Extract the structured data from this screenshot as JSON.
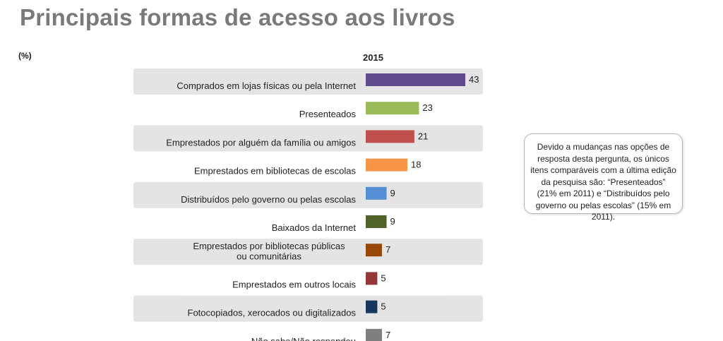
{
  "title": "Principais formas de acesso aos livros",
  "unit_label": "(%)",
  "note": "Devido a mudanças nas opções de resposta desta pergunta, os únicos itens comparáveis com a última edição da pesquisa são: “Presenteados” (21% em 2011) e “Distribuídos pelo governo ou pelas escolas” (15% em 2011).",
  "chart_data": {
    "type": "bar",
    "orientation": "horizontal",
    "series_name": "2015",
    "categories": [
      "Comprados em lojas físicas ou pela Internet",
      "Presenteados",
      "Emprestados por alguém da família ou amigos",
      "Emprestados em bibliotecas de escolas",
      "Distribuídos pelo governo ou pelas escolas",
      "Baixados da Internet",
      "Emprestados por bibliotecas públicas ou comunitárias",
      "Emprestados em outros locais",
      "Fotocopiados, xerocados ou digitalizados",
      "Não sabe/Não respondeu"
    ],
    "values": [
      43,
      23,
      21,
      18,
      9,
      9,
      7,
      5,
      5,
      7
    ],
    "colors": [
      "#5f4b8b",
      "#9bbb59",
      "#c0504d",
      "#f79646",
      "#558ed5",
      "#4f6228",
      "#974706",
      "#953735",
      "#17375e",
      "#7f7f7f"
    ],
    "band_shading": "alternating-gray",
    "legend": "none",
    "grid": false
  }
}
